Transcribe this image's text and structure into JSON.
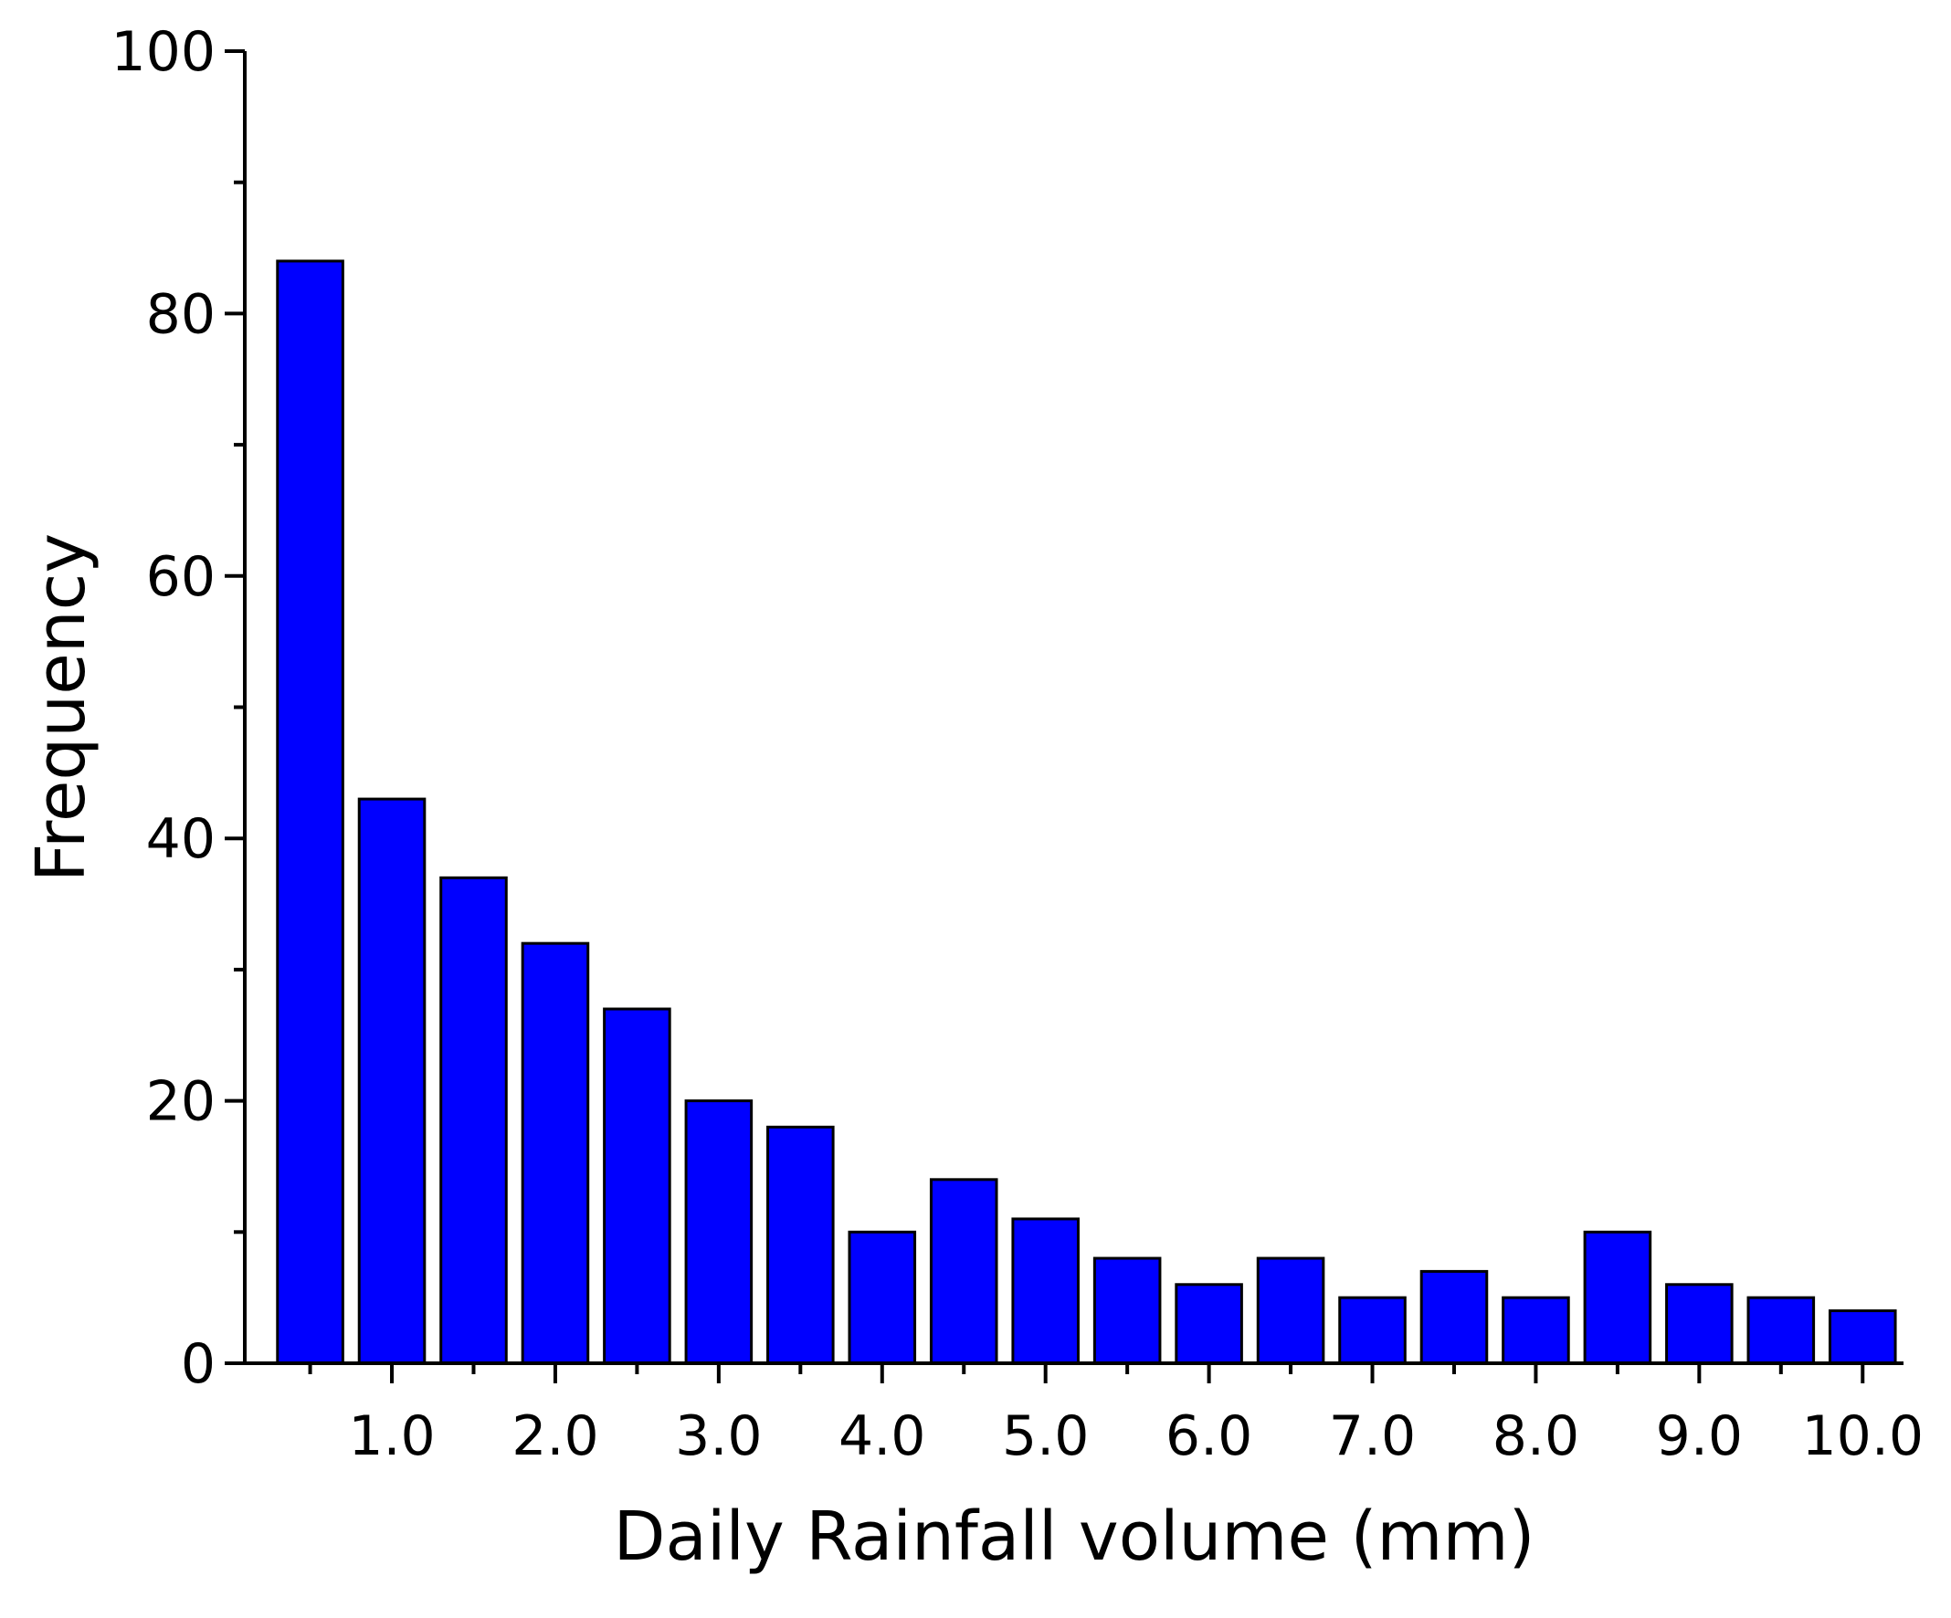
{
  "chart_data": {
    "type": "bar",
    "x": [
      0.5,
      1.0,
      1.5,
      2.0,
      2.5,
      3.0,
      3.5,
      4.0,
      4.5,
      5.0,
      5.5,
      6.0,
      6.5,
      7.0,
      7.5,
      8.0,
      8.5,
      9.0,
      9.5,
      10.0
    ],
    "values": [
      84,
      43,
      37,
      32,
      27,
      20,
      18,
      10,
      14,
      11,
      8,
      6,
      8,
      5,
      7,
      5,
      10,
      6,
      5,
      4
    ],
    "color": "#0000ff",
    "xlabel": "Daily Rainfall volume (mm)",
    "ylabel": "Frequency",
    "xlim": [
      0.1,
      10.25
    ],
    "ylim": [
      0,
      100
    ],
    "xticks": [
      {
        "value": 1,
        "label": "1.0"
      },
      {
        "value": 2,
        "label": "2.0"
      },
      {
        "value": 3,
        "label": "3.0"
      },
      {
        "value": 4,
        "label": "4.0"
      },
      {
        "value": 5,
        "label": "5.0"
      },
      {
        "value": 6,
        "label": "6.0"
      },
      {
        "value": 7,
        "label": "7.0"
      },
      {
        "value": 8,
        "label": "8.0"
      },
      {
        "value": 9,
        "label": "9.0"
      },
      {
        "value": 10,
        "label": "10.0"
      }
    ],
    "xminorticks": [
      0.5,
      1.5,
      2.5,
      3.5,
      4.5,
      5.5,
      6.5,
      7.5,
      8.5,
      9.5
    ],
    "yticks": [
      0,
      20,
      40,
      60,
      80,
      100
    ],
    "yminorticks": [
      10,
      30,
      50,
      70,
      90
    ],
    "grid": false
  }
}
